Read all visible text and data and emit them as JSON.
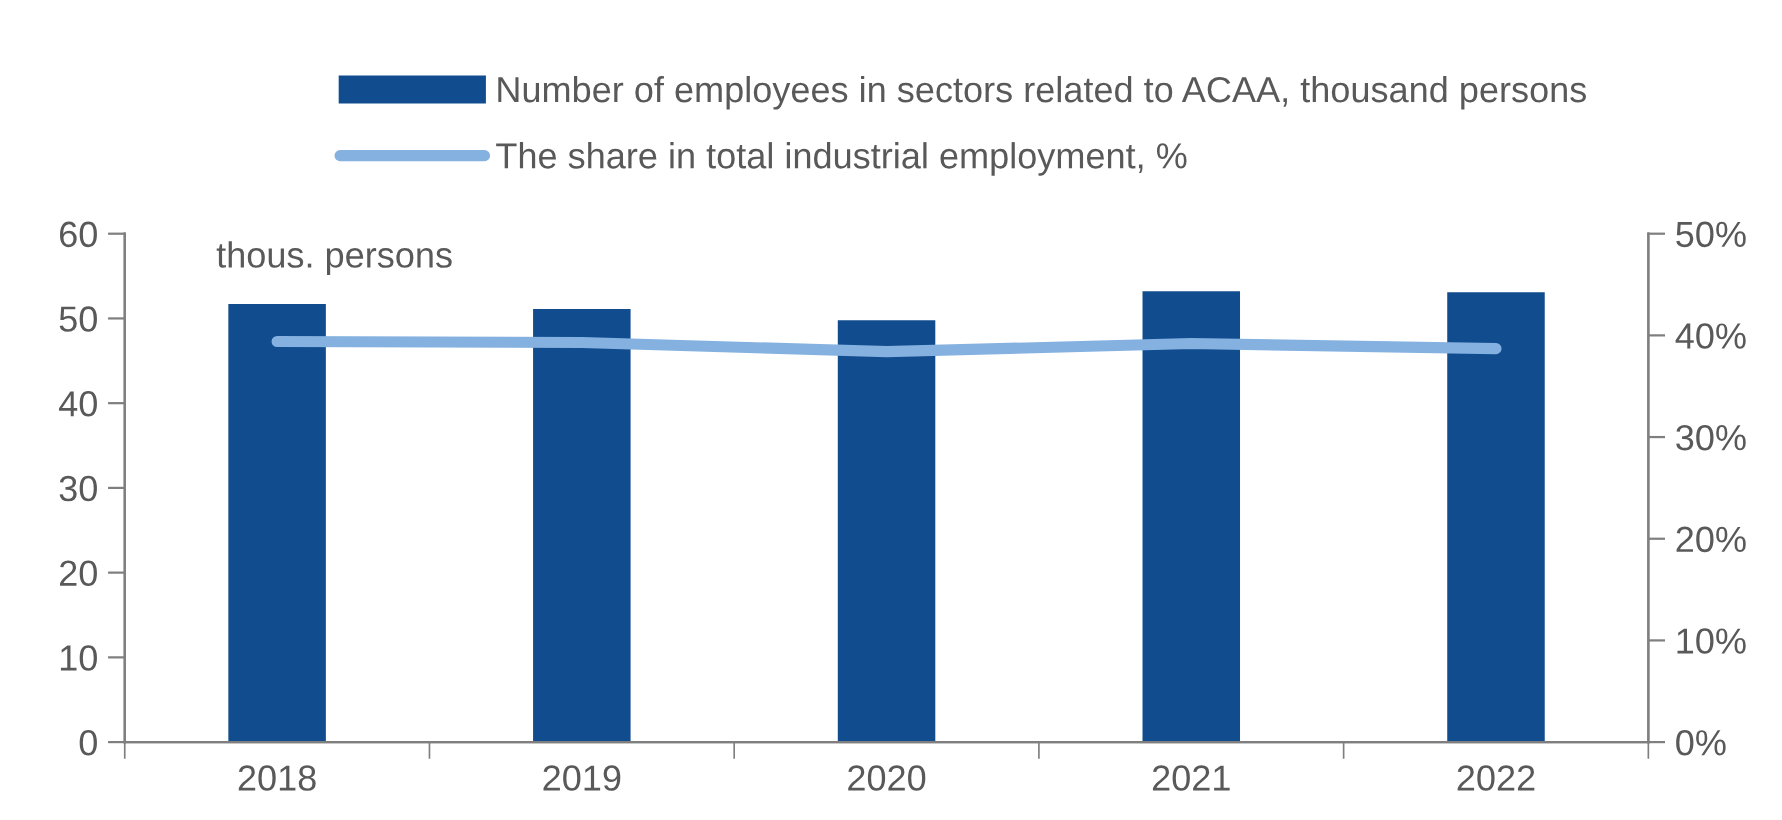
{
  "chart_data": {
    "type": "bar",
    "ylabel": "thous. persons",
    "categories": [
      "2018",
      "2019",
      "2020",
      "2021",
      "2022"
    ],
    "series": [
      {
        "name": "Number of employees in sectors related to ACAA, thousand persons",
        "color": "#114c8f",
        "values": [
          51.7,
          51.1,
          49.8,
          53.2,
          53.1
        ]
      },
      {
        "name": "The share in total industrial employment, %",
        "type": "line",
        "axis": "y2",
        "color": "#84b1e0",
        "values": [
          39.4,
          39.3,
          38.4,
          39.2,
          38.7
        ]
      }
    ],
    "ylim": [
      0,
      60
    ],
    "yticks": [
      0,
      10,
      20,
      30,
      40,
      50,
      60
    ],
    "y2lim": [
      0,
      50
    ],
    "y2ticks": [
      {
        "value": 0,
        "label": "0%"
      },
      {
        "value": 10,
        "label": "10%"
      },
      {
        "value": 20,
        "label": "20%"
      },
      {
        "value": 30,
        "label": "30%"
      },
      {
        "value": 40,
        "label": "40%"
      },
      {
        "value": 50,
        "label": "50%"
      }
    ],
    "grid": false,
    "legend": "top"
  }
}
